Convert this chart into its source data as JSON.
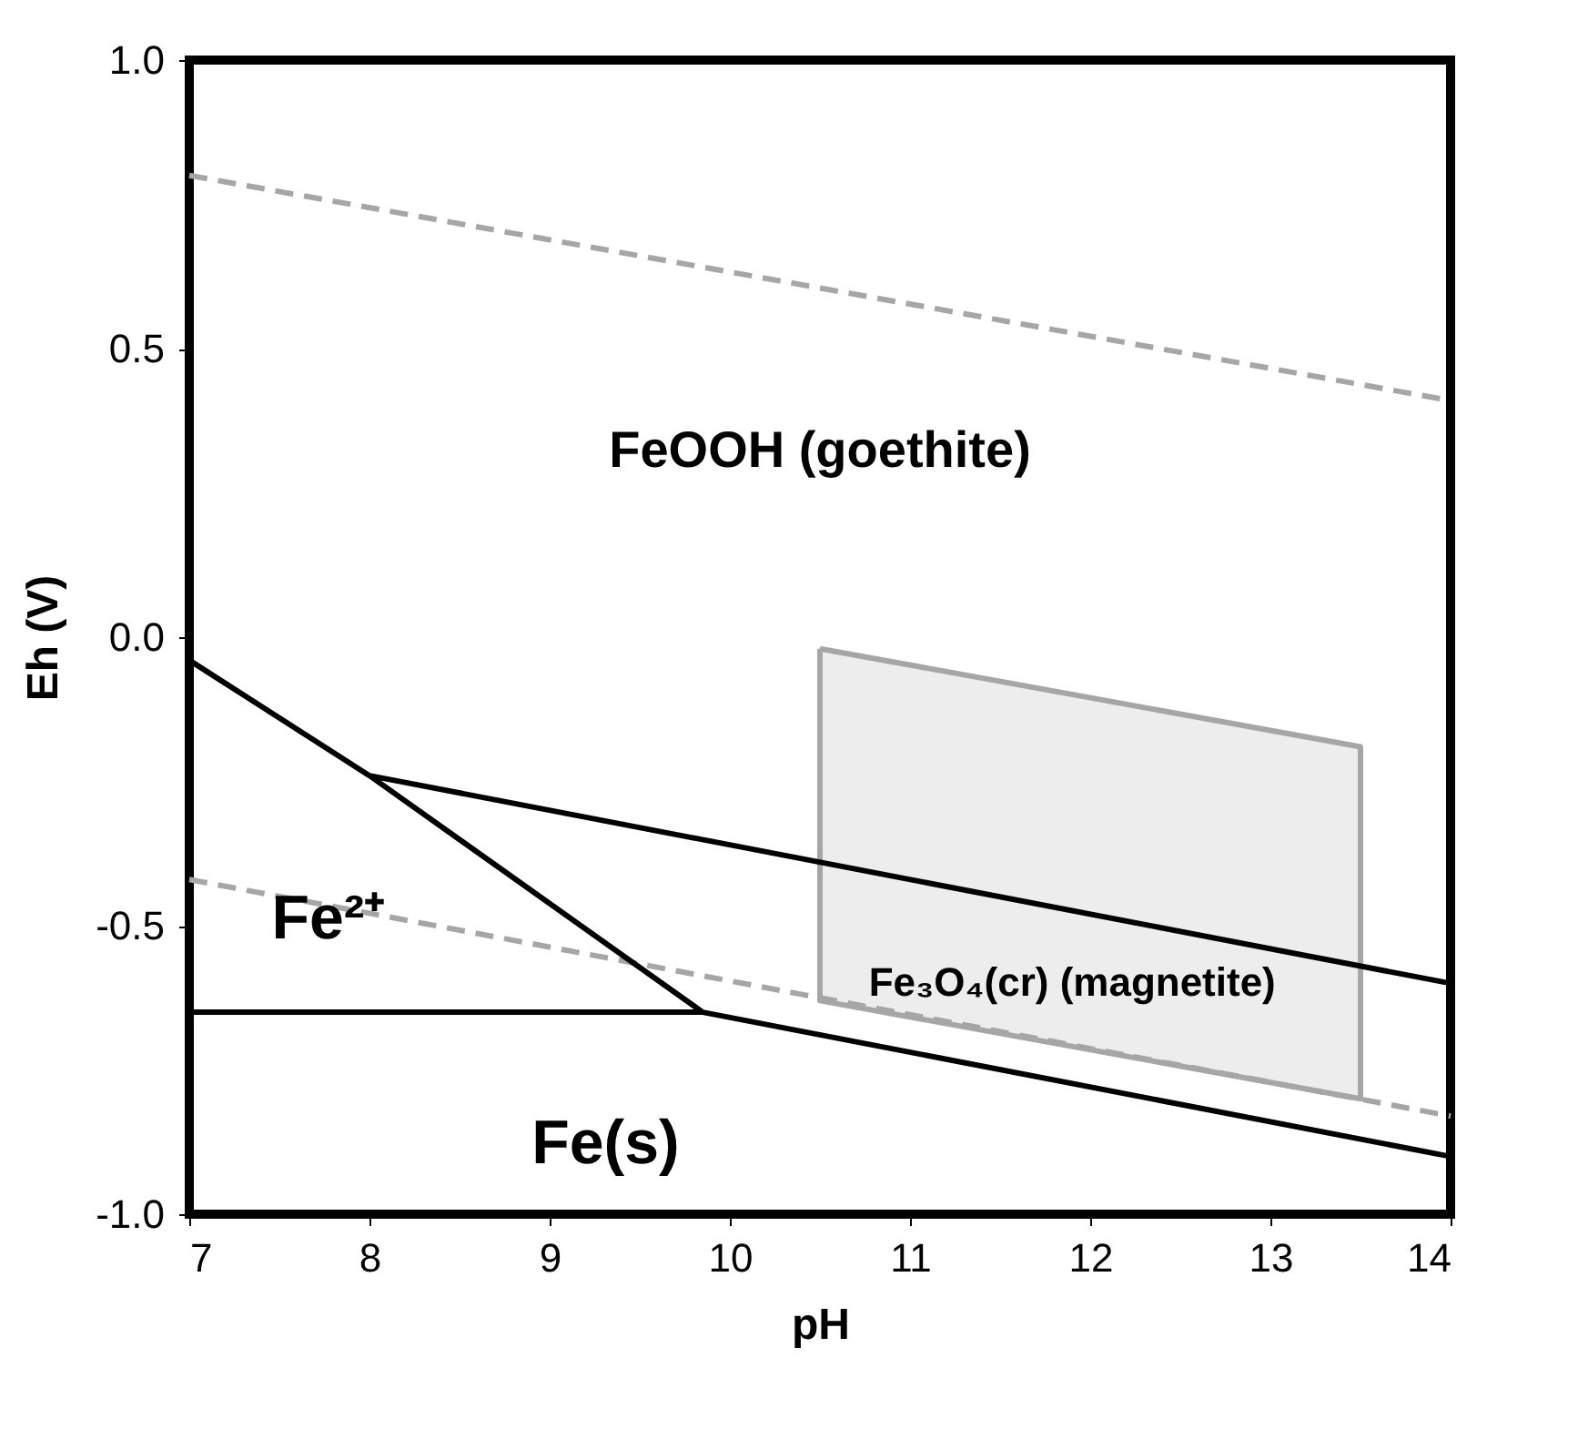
{
  "chart_data": {
    "type": "line",
    "xlabel": "pH",
    "ylabel": "Eh (V)",
    "xlim": [
      7,
      14
    ],
    "ylim": [
      -1.0,
      1.0
    ],
    "xticks": [
      7,
      8,
      9,
      10,
      11,
      12,
      13,
      14
    ],
    "yticks": [
      {
        "value": -1.0,
        "label": "-1.0"
      },
      {
        "value": -0.5,
        "label": "-0.5"
      },
      {
        "value": 0,
        "label": "0.0"
      },
      {
        "value": 0.5,
        "label": "0.5"
      },
      {
        "value": 1.0,
        "label": "1.0"
      }
    ],
    "grid": false,
    "marker": "none",
    "series": [
      {
        "line_style": "dashed",
        "color": "#a6a6a6",
        "x": [
          7,
          14
        ],
        "values": [
          0.8,
          0.41
        ]
      },
      {
        "line_style": "dashed",
        "color": "#a6a6a6",
        "x": [
          7,
          14
        ],
        "values": [
          -0.42,
          -0.83
        ]
      },
      {
        "type": "area",
        "color": "#a6a6a6",
        "x": [
          10.5,
          13.5,
          13.5,
          10.5,
          10.5
        ],
        "values": [
          -0.02,
          -0.19,
          -0.8,
          -0.63,
          -0.02
        ]
      },
      {
        "line_style": "solid",
        "color": "#000000",
        "x": [
          7,
          8,
          9.85,
          14,
          null,
          7,
          9.85,
          null,
          8,
          14
        ],
        "values": [
          -0.04,
          -0.24,
          -0.65,
          -0.9,
          null,
          -0.65,
          -0.65,
          null,
          -0.24,
          -0.6
        ]
      }
    ],
    "annotations": [
      "FeOOH (goethite)",
      "Fe²⁺",
      "Fe₃O₄(cr) (magnetite)",
      "Fe(s)"
    ]
  }
}
